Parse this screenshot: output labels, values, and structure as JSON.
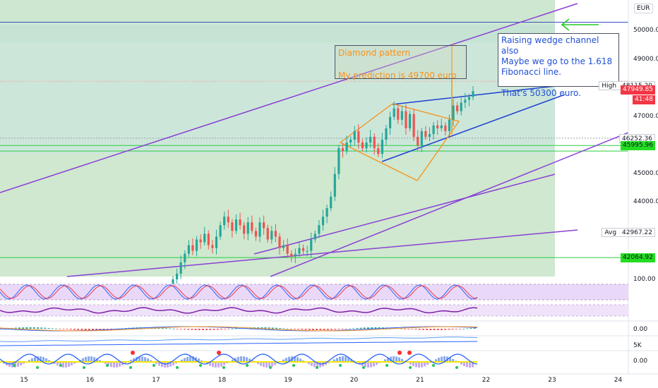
{
  "chart_data": {
    "type": "candlestick",
    "currency": "EUR",
    "x_ticks": [
      "15",
      "16",
      "17",
      "18",
      "19",
      "20",
      "21",
      "22",
      "23",
      "24"
    ],
    "y_ticks": [
      {
        "value": 50000,
        "label": "50000.00"
      },
      {
        "value": 49000,
        "label": "49000.00"
      },
      {
        "value": 47000,
        "label": "47000.00"
      },
      {
        "value": 45000,
        "label": "45000.00"
      },
      {
        "value": 44000,
        "label": "44000.00"
      }
    ],
    "ylim": [
      41400,
      51100
    ],
    "price_labels": [
      {
        "label": "High",
        "value": "48115.20",
        "price": 48115.2,
        "style": "outline"
      },
      {
        "label": "",
        "value": "47949.85",
        "price": 47949.85,
        "style": "red"
      },
      {
        "label": "",
        "value": "41:48",
        "price": 47620,
        "style": "red"
      },
      {
        "label": "",
        "value": "46252.36",
        "price": 46252.36,
        "style": "outline"
      },
      {
        "label": "",
        "value": "45995.96",
        "price": 45995.96,
        "style": "green"
      },
      {
        "label": "Avg",
        "value": "42967.22",
        "price": 42967.22,
        "style": "outline"
      },
      {
        "label": "",
        "value": "42064.92",
        "price": 42064.92,
        "style": "green"
      }
    ],
    "horizontal_lines": [
      {
        "price": 50320,
        "color": "#3a4fc8"
      },
      {
        "price": 48250,
        "color": "#f5a0a0",
        "dashed": true
      },
      {
        "price": 46252.36,
        "color": "#9aa0a6",
        "dashed": true
      },
      {
        "price": 45995.96,
        "color": "#2ecc40"
      },
      {
        "price": 45800,
        "color": "#2ecc40"
      },
      {
        "price": 42064.92,
        "color": "#2ecc40"
      }
    ],
    "annotations": [
      {
        "id": "diamond",
        "lines": [
          "Diamond pattern",
          "",
          "My prediction is 49700 euro"
        ]
      },
      {
        "id": "wedge",
        "lines": [
          "Raising wedge channel also",
          "Maybe we go to the 1.618",
          "Fibonacci line.",
          "",
          "That's 50300 euro."
        ]
      }
    ],
    "closes": [
      41300,
      41500,
      41900,
      42200,
      42500,
      42300,
      42700,
      42600,
      42900,
      42500,
      42400,
      42800,
      43200,
      43500,
      43300,
      43000,
      43400,
      43200,
      42900,
      43300,
      43000,
      42800,
      43300,
      43100,
      42700,
      43000,
      42800,
      42400,
      42500,
      42200,
      42100,
      42200,
      42400,
      42300,
      42300,
      42700,
      42900,
      43200,
      43500,
      43800,
      44200,
      45000,
      45900,
      45800,
      46100,
      46200,
      46500,
      46100,
      45900,
      46100,
      46300,
      45900,
      45700,
      46200,
      46600,
      47000,
      47300,
      46900,
      47200,
      46600,
      47100,
      46300,
      46000,
      46500,
      46300,
      46400,
      46700,
      46600,
      46700,
      46500,
      46900,
      47400,
      47200,
      47500,
      47600,
      47700,
      47900
    ]
  },
  "indicator_panels": [
    {
      "name": "stoch-rsi",
      "label": "100.00"
    },
    {
      "name": "rsi",
      "label": ""
    },
    {
      "name": "macd",
      "label": "0.00"
    },
    {
      "name": "volume-osc",
      "label": "5K"
    },
    {
      "name": "momentum",
      "label": "0.00"
    }
  ]
}
